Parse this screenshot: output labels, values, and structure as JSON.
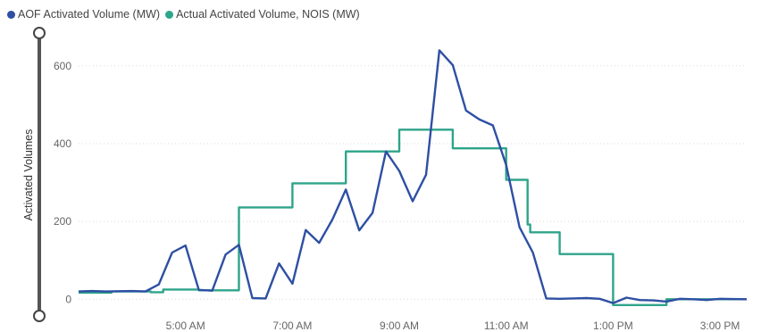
{
  "legend": {
    "items": [
      {
        "label": "AOF Activated Volume (MW)",
        "color": "#2E4FA3"
      },
      {
        "label": "Actual Activated Volume, NOIS (MW)",
        "color": "#2EA48A"
      }
    ]
  },
  "chart_data": {
    "type": "line",
    "title": "",
    "xlabel": "",
    "ylabel": "Activated Volumes",
    "ylim": [
      -20,
      650
    ],
    "xlim": [
      "3:00 AM",
      "3:30 PM"
    ],
    "x_ticks": [
      "5:00 AM",
      "7:00 AM",
      "9:00 AM",
      "11:00 AM",
      "1:00 PM",
      "3:00 PM"
    ],
    "y_ticks": [
      0,
      200,
      400,
      600
    ],
    "grid": true,
    "legend_position": "top-left",
    "series": [
      {
        "name": "AOF Activated Volume (MW)",
        "color": "#2E4FA3",
        "step": false,
        "points": [
          [
            "3:00 AM",
            20
          ],
          [
            "3:15 AM",
            21
          ],
          [
            "3:30 AM",
            20
          ],
          [
            "4:00 AM",
            21
          ],
          [
            "4:15 AM",
            20
          ],
          [
            "4:30 AM",
            38
          ],
          [
            "4:45 AM",
            120
          ],
          [
            "5:00 AM",
            138
          ],
          [
            "5:15 AM",
            24
          ],
          [
            "5:30 AM",
            22
          ],
          [
            "5:45 AM",
            115
          ],
          [
            "6:00 AM",
            140
          ],
          [
            "6:15 AM",
            3
          ],
          [
            "6:30 AM",
            2
          ],
          [
            "6:45 AM",
            92
          ],
          [
            "7:00 AM",
            40
          ],
          [
            "7:15 AM",
            178
          ],
          [
            "7:30 AM",
            145
          ],
          [
            "7:45 AM",
            205
          ],
          [
            "8:00 AM",
            282
          ],
          [
            "8:15 AM",
            177
          ],
          [
            "8:30 AM",
            222
          ],
          [
            "8:45 AM",
            380
          ],
          [
            "9:00 AM",
            330
          ],
          [
            "9:15 AM",
            252
          ],
          [
            "9:30 AM",
            320
          ],
          [
            "9:45 AM",
            640
          ],
          [
            "10:00 AM",
            602
          ],
          [
            "10:15 AM",
            485
          ],
          [
            "10:30 AM",
            462
          ],
          [
            "10:45 AM",
            447
          ],
          [
            "11:00 AM",
            345
          ],
          [
            "11:15 AM",
            185
          ],
          [
            "11:30 AM",
            120
          ],
          [
            "11:45 AM",
            2
          ],
          [
            "12:00 PM",
            1
          ],
          [
            "12:15 PM",
            2
          ],
          [
            "12:30 PM",
            3
          ],
          [
            "12:45 PM",
            1
          ],
          [
            "1:00 PM",
            -10
          ],
          [
            "1:15 PM",
            4
          ],
          [
            "1:30 PM",
            -2
          ],
          [
            "1:45 PM",
            -3
          ],
          [
            "2:00 PM",
            -6
          ],
          [
            "2:15 PM",
            1
          ],
          [
            "2:30 PM",
            0
          ],
          [
            "2:45 PM",
            -2
          ],
          [
            "3:00 PM",
            1
          ],
          [
            "3:30 PM",
            0
          ]
        ]
      },
      {
        "name": "Actual Activated Volume, NOIS (MW)",
        "color": "#2EA48A",
        "step": true,
        "points": [
          [
            "3:00 AM",
            17
          ],
          [
            "3:37 AM",
            20
          ],
          [
            "4:21 AM",
            18
          ],
          [
            "4:35 AM",
            25
          ],
          [
            "5:15 AM",
            23
          ],
          [
            "6:00 AM",
            236
          ],
          [
            "7:00 AM",
            298
          ],
          [
            "8:00 AM",
            380
          ],
          [
            "9:00 AM",
            436
          ],
          [
            "10:00 AM",
            388
          ],
          [
            "11:00 AM",
            307
          ],
          [
            "11:24 AM",
            192
          ],
          [
            "11:27 AM",
            172
          ],
          [
            "12:00 PM",
            116
          ],
          [
            "1:00 PM",
            -15
          ],
          [
            "2:00 PM",
            0
          ],
          [
            "3:30 PM",
            0
          ]
        ]
      }
    ]
  }
}
